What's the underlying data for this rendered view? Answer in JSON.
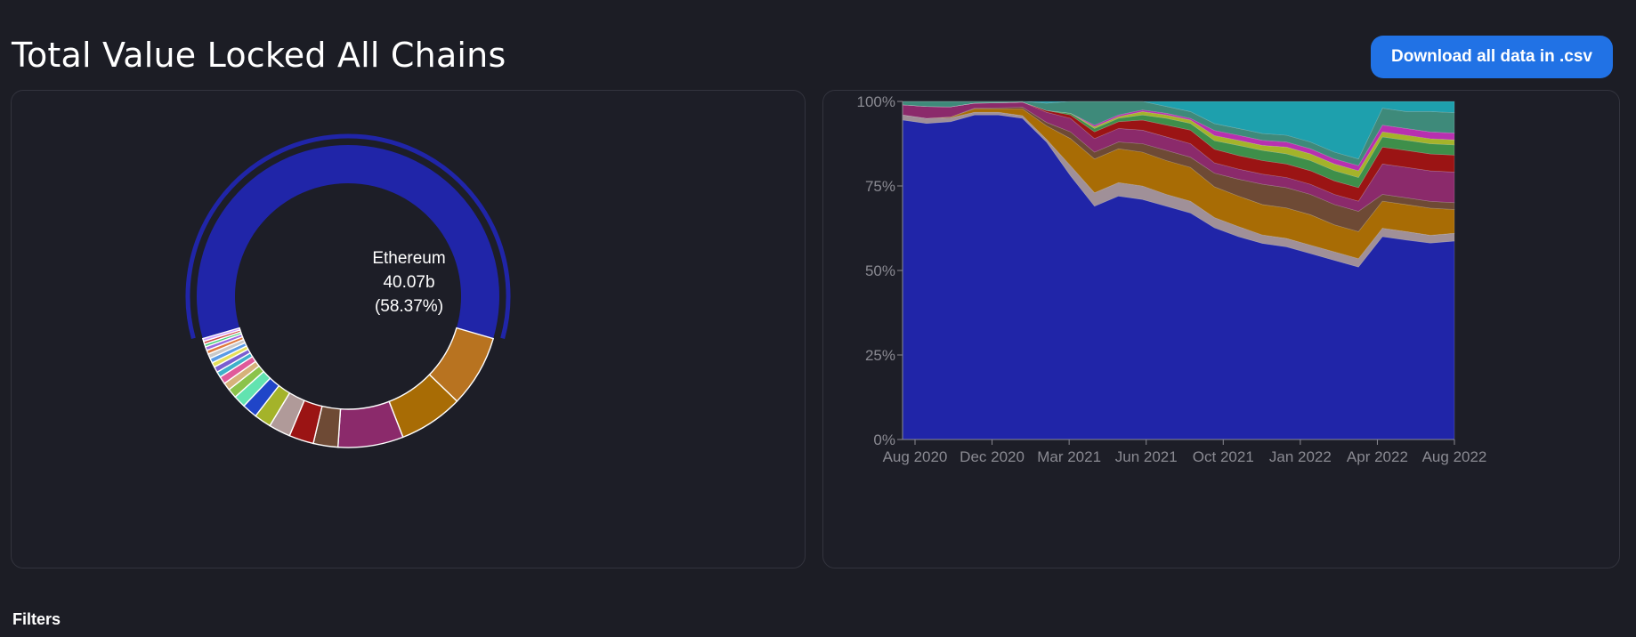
{
  "header": {
    "title": "Total Value Locked All Chains",
    "download_label": "Download all data in .csv"
  },
  "filters_label": "Filters",
  "colors": {
    "background": "#1c1d25",
    "panel": "#1d1e27",
    "button": "#2172e5",
    "ethereum": "#2025a8"
  },
  "chart_data": [
    {
      "type": "pie",
      "variant": "donut",
      "highlighted": {
        "name": "Ethereum",
        "value_label": "40.07b",
        "percent_label": "(58.37%)",
        "percent": 58.37
      },
      "slices": [
        {
          "percent": 58.37,
          "color": "#2025a8"
        },
        {
          "percent": 7.6,
          "color": "#b87320"
        },
        {
          "percent": 6.8,
          "color": "#a86c05"
        },
        {
          "percent": 6.9,
          "color": "#8b2a6b"
        },
        {
          "percent": 2.6,
          "color": "#6e4a35"
        },
        {
          "percent": 2.6,
          "color": "#9b1414"
        },
        {
          "percent": 2.3,
          "color": "#b09a99"
        },
        {
          "percent": 1.8,
          "color": "#a4b32a"
        },
        {
          "percent": 1.6,
          "color": "#2045c8"
        },
        {
          "percent": 1.3,
          "color": "#62e3b0"
        },
        {
          "percent": 1.0,
          "color": "#8bc34a"
        },
        {
          "percent": 0.8,
          "color": "#d6b27a"
        },
        {
          "percent": 0.8,
          "color": "#e05a9a"
        },
        {
          "percent": 0.6,
          "color": "#3fb0c9"
        },
        {
          "percent": 0.6,
          "color": "#7a5fd0"
        },
        {
          "percent": 0.5,
          "color": "#e6e05a"
        },
        {
          "percent": 0.5,
          "color": "#5a9be6"
        },
        {
          "percent": 0.5,
          "color": "#c9c9c9"
        },
        {
          "percent": 0.4,
          "color": "#e07a3f"
        },
        {
          "percent": 0.4,
          "color": "#9a6ae0"
        },
        {
          "percent": 0.3,
          "color": "#4ad07a"
        },
        {
          "percent": 0.3,
          "color": "#d04a4a"
        },
        {
          "percent": 0.3,
          "color": "#cfa0ff"
        }
      ]
    },
    {
      "type": "area",
      "stacked": "percent",
      "ylim": [
        0,
        100
      ],
      "yticks": [
        "0%",
        "25%",
        "50%",
        "75%",
        "100%"
      ],
      "xticks": [
        "Aug 2020",
        "Dec 2020",
        "Mar 2021",
        "Jun 2021",
        "Oct 2021",
        "Jan 2022",
        "Apr 2022",
        "Aug 2022"
      ],
      "x": [
        "Jun 2020",
        "Aug 2020",
        "Oct 2020",
        "Dec 2020",
        "Jan 2021",
        "Feb 2021",
        "Mar 2021",
        "Apr 2021",
        "May 2021",
        "Jun 2021",
        "Jul 2021",
        "Aug 2021",
        "Sep 2021",
        "Oct 2021",
        "Nov 2021",
        "Dec 2021",
        "Jan 2022",
        "Feb 2022",
        "Mar 2022",
        "Apr 2022",
        "May 2022",
        "Jun 2022",
        "Jul 2022",
        "Aug 2022"
      ],
      "series": [
        {
          "color": "#2025a8",
          "values": [
            94.5,
            93.5,
            94,
            96,
            96,
            95,
            88,
            78,
            69,
            72,
            71,
            69,
            67,
            62,
            60,
            58,
            57,
            55,
            53,
            51,
            60,
            59,
            58,
            58.4
          ]
        },
        {
          "color": "#a09098",
          "values": [
            1.5,
            1.5,
            1.2,
            0.8,
            0.8,
            0.8,
            0.8,
            3,
            4,
            4,
            4,
            3.5,
            3.5,
            3,
            3,
            2.5,
            2.5,
            2.5,
            2.5,
            2.5,
            2.5,
            2.5,
            2.3,
            2.3
          ]
        },
        {
          "color": "#a86c05",
          "values": [
            0,
            0,
            0.2,
            1,
            1,
            2,
            4,
            8,
            10,
            10,
            10,
            10,
            10,
            9,
            9,
            9,
            9,
            9,
            8,
            8,
            8,
            8,
            8,
            7
          ]
        },
        {
          "color": "#6e4a35",
          "values": [
            0,
            0,
            0,
            0.2,
            0.3,
            0.5,
            1,
            2,
            2,
            2,
            2.5,
            3,
            3,
            4,
            5,
            6,
            6,
            6,
            6,
            6,
            2,
            2,
            2,
            2
          ]
        },
        {
          "color": "#8b2a6b",
          "values": [
            3,
            3.5,
            3,
            1.5,
            1.5,
            1.5,
            3,
            4,
            4,
            4,
            4,
            4,
            4,
            3,
            3,
            3,
            3,
            3,
            3,
            3,
            9,
            9,
            9,
            9
          ]
        },
        {
          "color": "#9b1414",
          "values": [
            0,
            0,
            0,
            0,
            0,
            0,
            0.5,
            1,
            2,
            2,
            3,
            3.5,
            4,
            4,
            4,
            4,
            4,
            4,
            4,
            4,
            5,
            5,
            5,
            5
          ]
        },
        {
          "color": "#3e8f4a",
          "values": [
            0,
            0,
            0,
            0,
            0,
            0,
            0,
            0.5,
            1,
            1,
            1.5,
            2,
            2,
            2.5,
            3,
            3,
            3,
            3,
            3,
            3,
            3,
            3,
            3,
            3
          ]
        },
        {
          "color": "#a4b32a",
          "values": [
            0,
            0,
            0,
            0,
            0,
            0,
            0,
            0,
            0.5,
            0.5,
            1,
            1,
            1,
            1.5,
            1.5,
            1.5,
            2,
            2,
            2,
            2,
            1.5,
            1.5,
            1.5,
            1.5
          ]
        },
        {
          "color": "#b830b0",
          "values": [
            0,
            0,
            0,
            0,
            0,
            0,
            0,
            0,
            0.5,
            0.5,
            0.5,
            0.5,
            0.5,
            1.5,
            1.5,
            1.5,
            1.5,
            1.5,
            1.5,
            1.5,
            2,
            2,
            2,
            2
          ]
        },
        {
          "color": "#3e8a7a",
          "values": [
            1,
            1.5,
            1.6,
            0.5,
            0.4,
            0.2,
            2.2,
            3.5,
            7,
            4,
            2.5,
            2,
            2,
            2,
            2,
            2,
            2,
            2,
            2,
            2,
            5,
            5,
            6,
            6
          ]
        },
        {
          "color": "#1ea0ad",
          "values": [
            0,
            0,
            0,
            0,
            0,
            0,
            0.5,
            0,
            0,
            0,
            0,
            1.5,
            3,
            6.5,
            8,
            9.5,
            10,
            12,
            15,
            17,
            2,
            3,
            3,
            3.3
          ]
        }
      ]
    }
  ]
}
